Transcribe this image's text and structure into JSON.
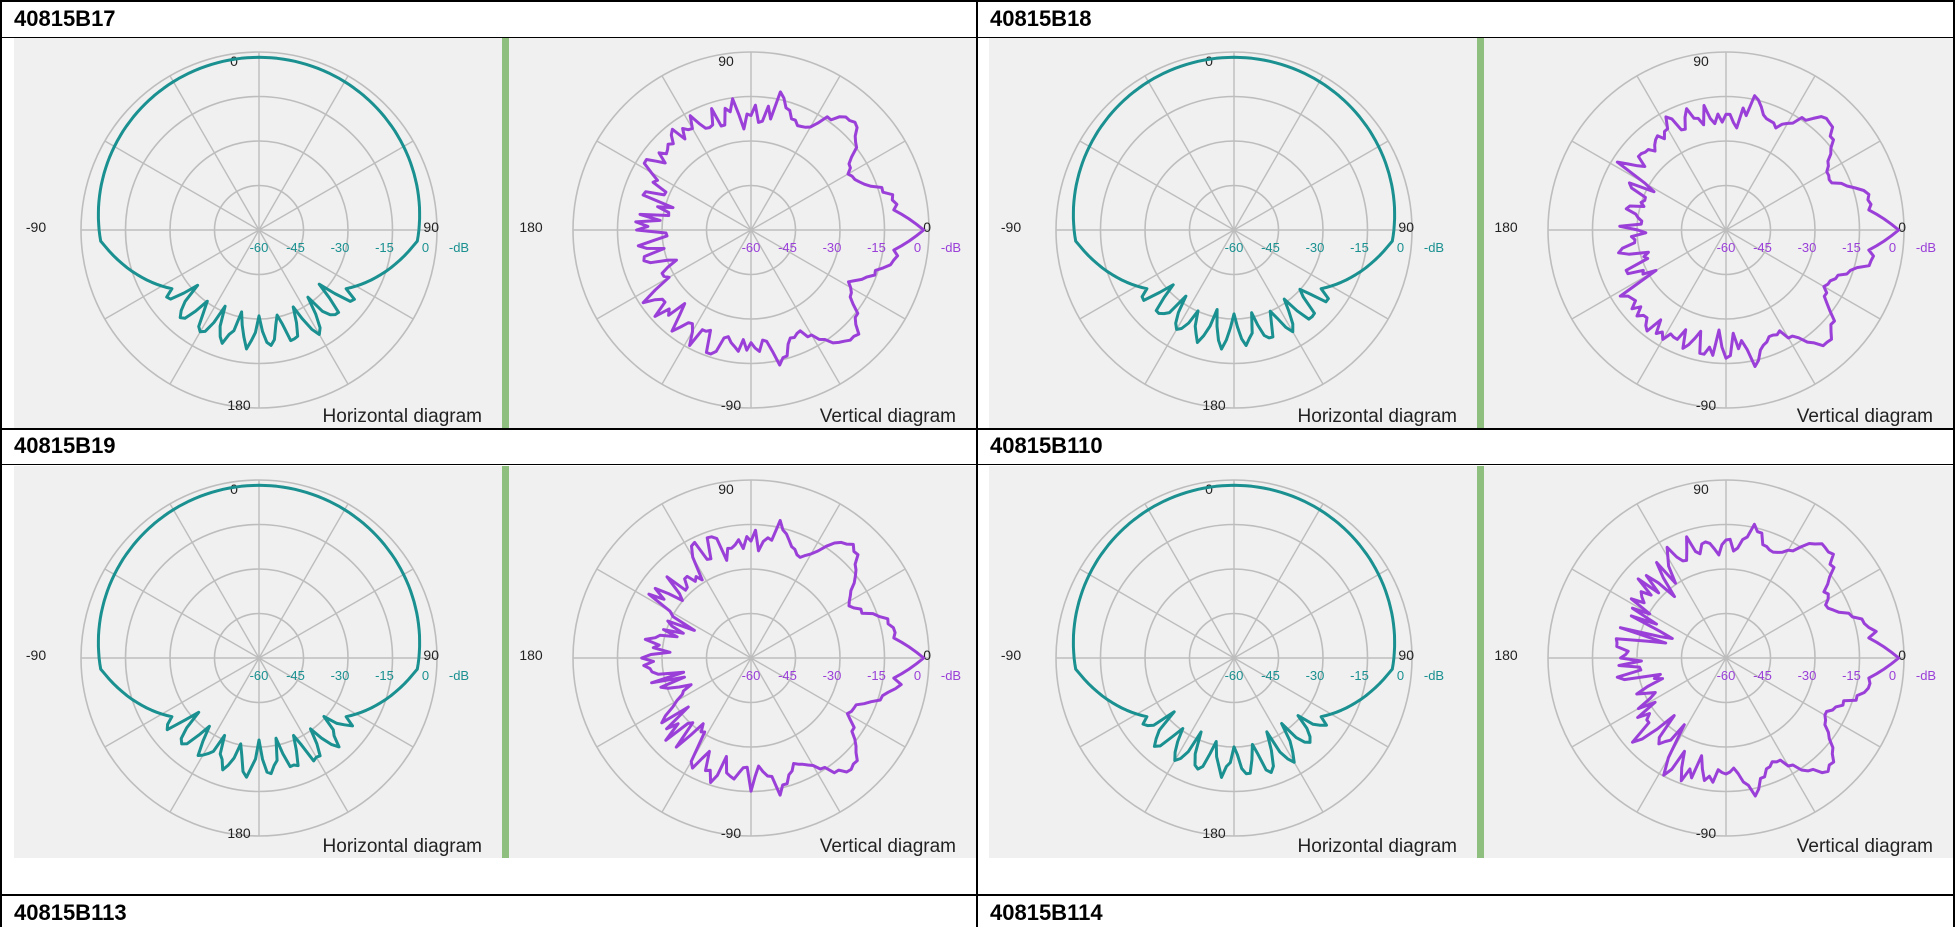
{
  "cells": [
    {
      "title": "40815B17"
    },
    {
      "title": "40815B18"
    },
    {
      "title": "40815B19"
    },
    {
      "title": "40815B110"
    },
    {
      "title": "40815B113"
    },
    {
      "title": "40815B114"
    }
  ],
  "horizontal": {
    "diagram_label": "Horizontal diagram",
    "angle_labels": {
      "top": "0",
      "left": "-90",
      "right": "90",
      "bottom": "180"
    },
    "ring_labels": [
      "-60",
      "-45",
      "-30",
      "-15",
      "0"
    ],
    "unit": "-dB",
    "color": "#1a9090"
  },
  "vertical": {
    "diagram_label": "Vertical diagram",
    "angle_labels": {
      "top": "90",
      "left": "180",
      "right": "0",
      "bottom": "-90"
    },
    "ring_labels": [
      "-60",
      "-45",
      "-30",
      "-15",
      "0"
    ],
    "unit": "-dB",
    "color": "#9a3fd8"
  },
  "grid_color": "#bdbdbd",
  "separator_color": "#8fbf7f"
}
